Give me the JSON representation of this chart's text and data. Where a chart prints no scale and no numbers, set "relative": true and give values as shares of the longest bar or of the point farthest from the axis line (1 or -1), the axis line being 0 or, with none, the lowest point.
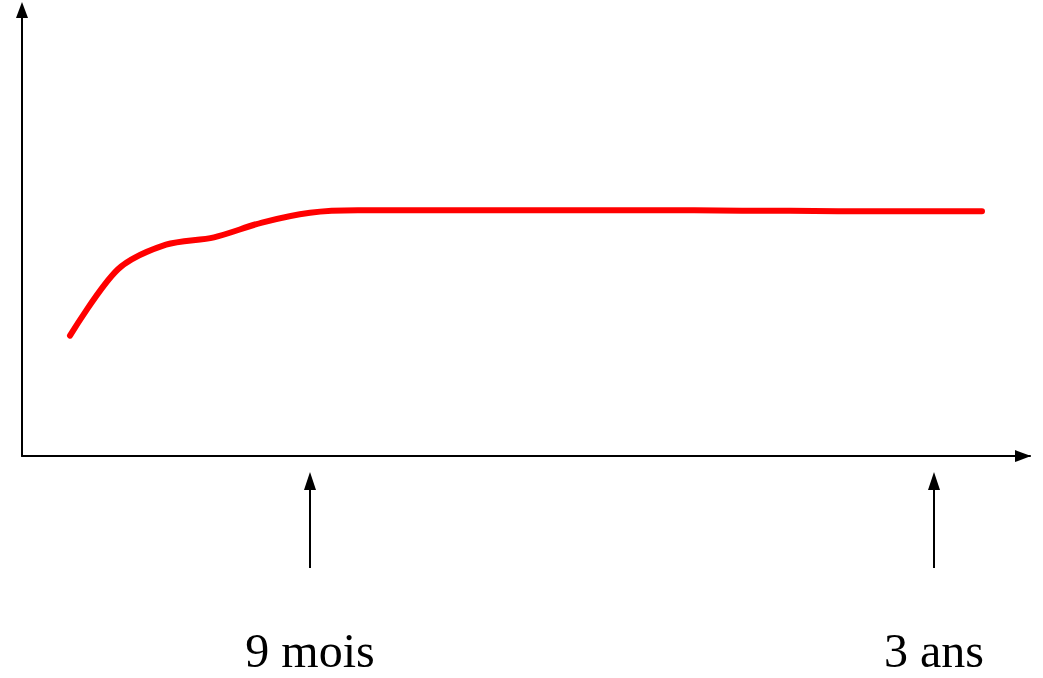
{
  "chart_data": {
    "type": "line",
    "relative": true,
    "categories": [
      null,
      null,
      null,
      null,
      null,
      null,
      "9 mois",
      null,
      null,
      null,
      null,
      null,
      null,
      null,
      null,
      null,
      null,
      null,
      null,
      "3 ans",
      null,
      null
    ],
    "series": [
      {
        "color": "#ff0000",
        "values": [
          null,
          0.49,
          0.76,
          0.86,
          0.89,
          0.95,
          0.99,
          1.0,
          1.0,
          1.0,
          1.0,
          1.0,
          1.0,
          1.0,
          1.0,
          0.998,
          0.998,
          0.996,
          0.996,
          0.996,
          0.996,
          null
        ]
      }
    ],
    "grid": false,
    "marker": "none",
    "line_style": "solid"
  }
}
